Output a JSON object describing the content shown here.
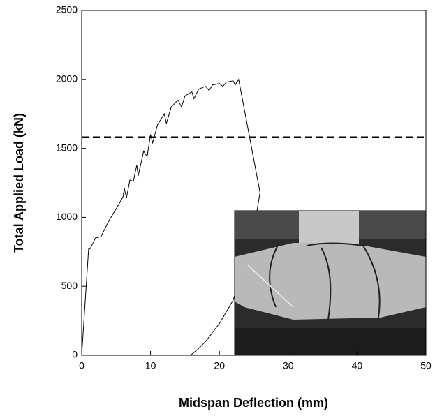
{
  "chart_data": {
    "type": "line",
    "x_label": "Midspan Deflection (mm)",
    "y_label": "Total Applied Load (kN)",
    "x": [
      0,
      1,
      1.2,
      2,
      2.8,
      4,
      5,
      6,
      6.2,
      6.5,
      7,
      7.5,
      8,
      8.2,
      9,
      9.5,
      10,
      10.3,
      11,
      12,
      12.3,
      13,
      14,
      14.5,
      15,
      16,
      16.3,
      17,
      18,
      18.5,
      19,
      20,
      20.5,
      21,
      22,
      22.3,
      22.8,
      25.9,
      25.3,
      24,
      22,
      20,
      18,
      16.8,
      15.8
    ],
    "series": [
      {
        "color": "#000000",
        "values": [
          0,
          770,
          770,
          850,
          860,
          980,
          1060,
          1150,
          1210,
          1140,
          1270,
          1260,
          1380,
          1300,
          1480,
          1440,
          1600,
          1540,
          1670,
          1750,
          1680,
          1800,
          1850,
          1800,
          1880,
          1910,
          1860,
          1930,
          1950,
          1920,
          1960,
          1970,
          1950,
          1980,
          1990,
          1960,
          2000,
          1180,
          1000,
          700,
          400,
          230,
          100,
          40,
          0
        ]
      }
    ],
    "reference_line": {
      "value": 1580,
      "color": "#000000",
      "style": "dashed"
    },
    "xlim": [
      0,
      50
    ],
    "xticks": [
      0,
      10,
      20,
      30,
      40,
      50
    ],
    "ylim": [
      0,
      2500
    ],
    "yticks": [
      0,
      500,
      1000,
      1500,
      2000,
      2500
    ],
    "grid": false
  }
}
